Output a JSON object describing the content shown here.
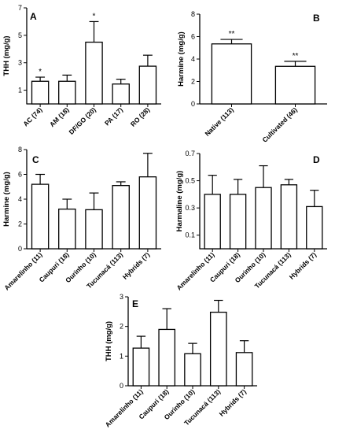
{
  "chart_data": [
    {
      "type": "bar",
      "panel": "A",
      "ylabel": "THH (mg/g)",
      "categories": [
        "AC (74)",
        "AM (18)",
        "DF/GO (20)",
        "PA (17)",
        "RO (28)"
      ],
      "values": [
        1.65,
        1.65,
        4.5,
        1.45,
        2.75
      ],
      "errors": [
        0.3,
        0.45,
        1.5,
        0.35,
        0.8
      ],
      "annotations": [
        "*",
        "",
        "*",
        "",
        ""
      ],
      "ylim": [
        0,
        7
      ],
      "yticks": [
        1,
        3,
        5,
        7
      ]
    },
    {
      "type": "bar",
      "panel": "B",
      "ylabel": "Harmine (mg/g)",
      "categories": [
        "Native (113)",
        "Cultivated (46)"
      ],
      "values": [
        5.35,
        3.35
      ],
      "errors": [
        0.4,
        0.45
      ],
      "annotations": [
        "**",
        "**"
      ],
      "ylim": [
        0,
        8
      ],
      "yticks": [
        0,
        2,
        4,
        6,
        8
      ]
    },
    {
      "type": "bar",
      "panel": "C",
      "ylabel": "Harmine (mg/g)",
      "categories": [
        "Amarelinho (11)",
        "Caupuri (18)",
        "Ourinho (10)",
        "Tucunacá (113)",
        "Hybrids (7)"
      ],
      "values": [
        5.2,
        3.2,
        3.15,
        5.1,
        5.8
      ],
      "errors": [
        0.8,
        0.8,
        1.35,
        0.3,
        1.9
      ],
      "annotations": [
        "",
        "",
        "",
        "",
        ""
      ],
      "ylim": [
        0,
        8
      ],
      "yticks": [
        0,
        2,
        4,
        6,
        8
      ]
    },
    {
      "type": "bar",
      "panel": "D",
      "ylabel": "Harmaline (mg/g)",
      "categories": [
        "Amarelinho (11)",
        "Caupuri (18)",
        "Ourinho (10)",
        "Tucunacá (113)",
        "Hybrids (7)"
      ],
      "values": [
        0.4,
        0.4,
        0.45,
        0.47,
        0.31
      ],
      "errors": [
        0.14,
        0.11,
        0.16,
        0.04,
        0.12
      ],
      "annotations": [
        "",
        "",
        "",
        "",
        ""
      ],
      "ylim": [
        0,
        0.7
      ],
      "yticks": [
        0.1,
        0.3,
        0.5,
        0.7
      ]
    },
    {
      "type": "bar",
      "panel": "E",
      "ylabel": "THH (mg/g)",
      "categories": [
        "Amarelinho (11)",
        "Caupuri (18)",
        "Ourinho (10)",
        "Tucunacá (113)",
        "Hybrids (7)"
      ],
      "values": [
        1.27,
        1.9,
        1.08,
        2.48,
        1.12
      ],
      "errors": [
        0.4,
        0.7,
        0.35,
        0.4,
        0.4
      ],
      "annotations": [
        "",
        "",
        "",
        "",
        ""
      ],
      "ylim": [
        0,
        3
      ],
      "yticks": [
        0,
        1,
        2,
        3
      ]
    }
  ]
}
